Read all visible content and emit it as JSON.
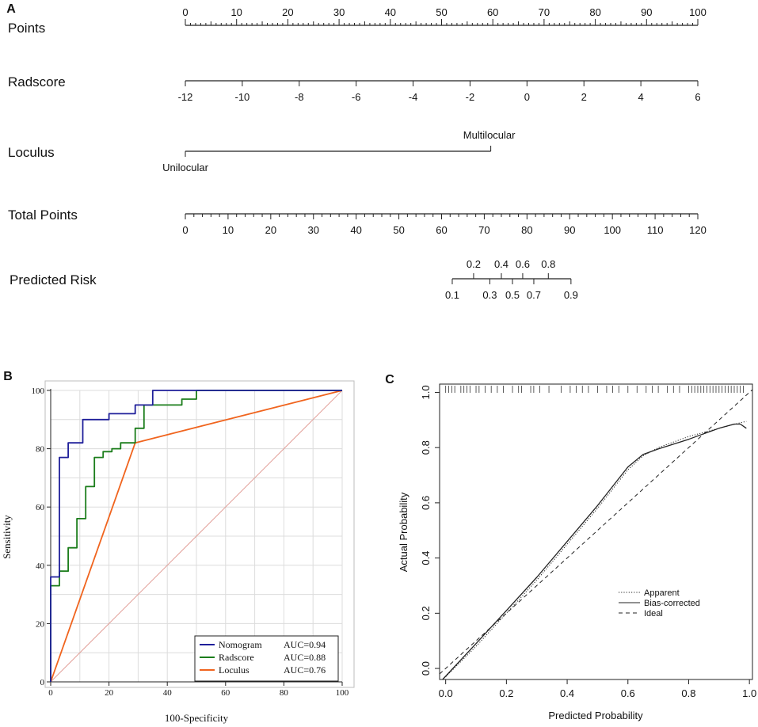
{
  "panels": {
    "a": "A",
    "b": "B",
    "c": "C"
  },
  "chart_data": [
    {
      "type": "nomogram",
      "panel": "A",
      "rows": [
        {
          "label": "Points",
          "range": [
            0,
            100
          ],
          "major": [
            0,
            10,
            20,
            30,
            40,
            50,
            60,
            70,
            80,
            90,
            100
          ],
          "minor_step": 1,
          "labels_above": true
        },
        {
          "label": "Radscore",
          "range": [
            -12,
            6
          ],
          "major": [
            -12,
            -10,
            -8,
            -6,
            -4,
            -2,
            0,
            2,
            4,
            6
          ],
          "points_range": [
            0,
            100
          ]
        },
        {
          "label": "Loculus",
          "categories": [
            {
              "name": "Unilocular",
              "points": 0
            },
            {
              "name": "Multilocular",
              "points": 59.6
            }
          ]
        },
        {
          "label": "Total Points",
          "range": [
            0,
            120
          ],
          "major": [
            0,
            10,
            20,
            30,
            40,
            50,
            60,
            70,
            80,
            90,
            100,
            110,
            120
          ],
          "minor_step": 2
        },
        {
          "label": "Predicted Risk",
          "ticks_top": [
            "0.2",
            "0.4",
            "0.6",
            "0.8"
          ],
          "ticks_bottom": [
            "0.1",
            "0.3",
            "0.5",
            "0.7",
            "0.9"
          ],
          "total_points": {
            "0.1": 62.5,
            "0.2": 67.5,
            "0.3": 71.3,
            "0.4": 74.0,
            "0.5": 76.6,
            "0.6": 79.0,
            "0.7": 81.6,
            "0.8": 85.0,
            "0.9": 90.3
          }
        }
      ]
    },
    {
      "type": "line",
      "panel": "B",
      "xlabel": "100-Specificity",
      "ylabel": "Sensitivity",
      "xlim": [
        0,
        100
      ],
      "ylim": [
        0,
        100
      ],
      "xticks": [
        "0",
        "20",
        "40",
        "60",
        "80",
        "100"
      ],
      "yticks": [
        "0",
        "20",
        "40",
        "60",
        "80",
        "100"
      ],
      "grid": true,
      "legend_position": "bottom-right",
      "series": [
        {
          "name": "Nomogram",
          "auc": "AUC=0.94",
          "color": "#1f1f9a",
          "points": [
            [
              0,
              0
            ],
            [
              0,
              36
            ],
            [
              3,
              36
            ],
            [
              3,
              77
            ],
            [
              6,
              77
            ],
            [
              6,
              82
            ],
            [
              11,
              82
            ],
            [
              11,
              90
            ],
            [
              20,
              90
            ],
            [
              20,
              92
            ],
            [
              29,
              92
            ],
            [
              29,
              95
            ],
            [
              35,
              95
            ],
            [
              35,
              100
            ],
            [
              100,
              100
            ]
          ]
        },
        {
          "name": "Radscore",
          "auc": "AUC=0.88",
          "color": "#1b7d1b",
          "points": [
            [
              0,
              0
            ],
            [
              0,
              33
            ],
            [
              3,
              33
            ],
            [
              3,
              38
            ],
            [
              6,
              38
            ],
            [
              6,
              46
            ],
            [
              9,
              46
            ],
            [
              9,
              56
            ],
            [
              12,
              56
            ],
            [
              12,
              67
            ],
            [
              15,
              67
            ],
            [
              15,
              77
            ],
            [
              18,
              77
            ],
            [
              18,
              79
            ],
            [
              21,
              79
            ],
            [
              21,
              80
            ],
            [
              24,
              80
            ],
            [
              24,
              82
            ],
            [
              29,
              82
            ],
            [
              29,
              87
            ],
            [
              32,
              87
            ],
            [
              32,
              95
            ],
            [
              45,
              95
            ],
            [
              45,
              97
            ],
            [
              50,
              97
            ],
            [
              50,
              100
            ],
            [
              100,
              100
            ]
          ]
        },
        {
          "name": "Loculus",
          "auc": "AUC=0.76",
          "color": "#f0641e",
          "points": [
            [
              0,
              0
            ],
            [
              29,
              82
            ],
            [
              100,
              100
            ]
          ]
        },
        {
          "name": "Reference",
          "color": "#e2a19a",
          "points": [
            [
              0,
              0
            ],
            [
              100,
              100
            ]
          ]
        }
      ]
    },
    {
      "type": "line",
      "panel": "C",
      "xlabel": "Predicted Probability",
      "ylabel": "Actual Probability",
      "xlim": [
        -0.02,
        1.01
      ],
      "ylim": [
        -0.04,
        1.03
      ],
      "xticks": [
        "0.0",
        "0.2",
        "0.4",
        "0.6",
        "0.8",
        "1.0"
      ],
      "yticks": [
        "0.0",
        "0.2",
        "0.4",
        "0.6",
        "0.8",
        "1.0"
      ],
      "legend_position": "bottom-right",
      "series": [
        {
          "name": "Apparent",
          "style": "dotted",
          "points": [
            [
              0.0,
              -0.03
            ],
            [
              0.1,
              0.08
            ],
            [
              0.2,
              0.2
            ],
            [
              0.3,
              0.32
            ],
            [
              0.4,
              0.45
            ],
            [
              0.5,
              0.58
            ],
            [
              0.55,
              0.65
            ],
            [
              0.6,
              0.72
            ],
            [
              0.65,
              0.77
            ],
            [
              0.7,
              0.8
            ],
            [
              0.8,
              0.84
            ],
            [
              0.9,
              0.87
            ],
            [
              0.97,
              0.89
            ],
            [
              0.99,
              0.895
            ]
          ]
        },
        {
          "name": "Bias-corrected",
          "style": "solid",
          "points": [
            [
              -0.01,
              -0.04
            ],
            [
              0.1,
              0.09
            ],
            [
              0.2,
              0.21
            ],
            [
              0.3,
              0.33
            ],
            [
              0.4,
              0.46
            ],
            [
              0.5,
              0.59
            ],
            [
              0.55,
              0.66
            ],
            [
              0.6,
              0.73
            ],
            [
              0.65,
              0.775
            ],
            [
              0.7,
              0.795
            ],
            [
              0.8,
              0.83
            ],
            [
              0.85,
              0.85
            ],
            [
              0.9,
              0.87
            ],
            [
              0.95,
              0.885
            ],
            [
              0.97,
              0.885
            ],
            [
              0.99,
              0.87
            ]
          ]
        },
        {
          "name": "Ideal",
          "style": "dashed",
          "points": [
            [
              -0.02,
              -0.02
            ],
            [
              1.01,
              1.01
            ]
          ]
        }
      ],
      "rug": [
        0.0,
        0.01,
        0.02,
        0.03,
        0.05,
        0.06,
        0.07,
        0.08,
        0.1,
        0.11,
        0.13,
        0.15,
        0.17,
        0.19,
        0.22,
        0.24,
        0.25,
        0.28,
        0.29,
        0.31,
        0.34,
        0.38,
        0.41,
        0.43,
        0.45,
        0.47,
        0.5,
        0.53,
        0.55,
        0.57,
        0.6,
        0.63,
        0.66,
        0.68,
        0.7,
        0.73,
        0.75,
        0.77,
        0.8,
        0.81,
        0.82,
        0.83,
        0.84,
        0.85,
        0.86,
        0.87,
        0.88,
        0.89,
        0.9,
        0.91,
        0.92,
        0.93,
        0.94,
        0.95,
        0.96,
        0.97,
        0.98
      ]
    }
  ]
}
